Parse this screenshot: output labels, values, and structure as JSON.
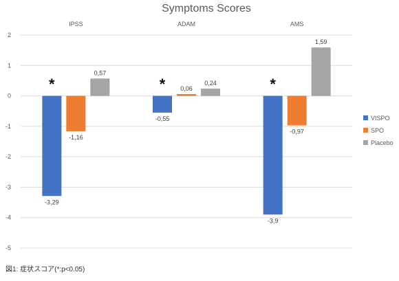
{
  "chart_data": {
    "type": "bar",
    "title": "Symptoms Scores",
    "categories": [
      "IPSS",
      "ADAM",
      "AMS"
    ],
    "series": [
      {
        "name": "VISPO",
        "color": "#4472c4",
        "values": [
          -3.29,
          -0.55,
          -3.9
        ],
        "labels": [
          "-3,29",
          "-0,55",
          "-3,9"
        ]
      },
      {
        "name": "SPO",
        "color": "#ed7d31",
        "values": [
          -1.16,
          0.06,
          -0.97
        ],
        "labels": [
          "-1,16",
          "0,06",
          "-0,97"
        ]
      },
      {
        "name": "Placebo",
        "color": "#a5a5a5",
        "values": [
          0.57,
          0.24,
          1.59
        ],
        "labels": [
          "0,57",
          "0,24",
          "1,59"
        ]
      }
    ],
    "yticks": [
      2,
      1,
      0,
      -1,
      -2,
      -3,
      -4,
      -5
    ],
    "ytick_labels": [
      "2",
      "1",
      "0",
      "-1",
      "-2",
      "-3",
      "-4",
      "-5"
    ],
    "ylim": [
      -5,
      2
    ],
    "grid": true,
    "legend": "right",
    "annotations": [
      "*",
      "*",
      "*"
    ],
    "caption": "図1: 症状スコア(*:p<0.05)"
  }
}
